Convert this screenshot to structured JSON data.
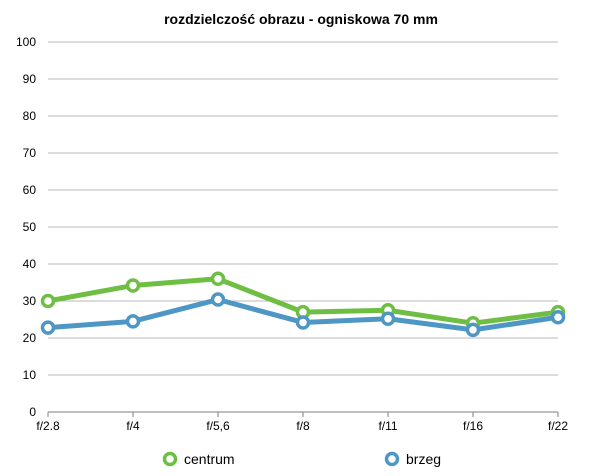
{
  "chart_data": {
    "type": "line",
    "title": "rozdzielczość obrazu - ogniskowa 70 mm",
    "xlabel": "",
    "ylabel": "",
    "categories": [
      "f/2.8",
      "f/4",
      "f/5,6",
      "f/8",
      "f/11",
      "f/16",
      "f/22"
    ],
    "ylim": [
      0,
      100
    ],
    "yticks": [
      0,
      10,
      20,
      30,
      40,
      50,
      60,
      70,
      80,
      90,
      100
    ],
    "grid": true,
    "legend_position": "bottom",
    "series": [
      {
        "name": "centrum",
        "color": "#6fbe44",
        "values": [
          30,
          34.2,
          36,
          27,
          27.5,
          24,
          27
        ]
      },
      {
        "name": "brzeg",
        "color": "#4e97c5",
        "values": [
          22.8,
          24.5,
          30.4,
          24.2,
          25.2,
          22.2,
          25.6
        ]
      }
    ]
  }
}
